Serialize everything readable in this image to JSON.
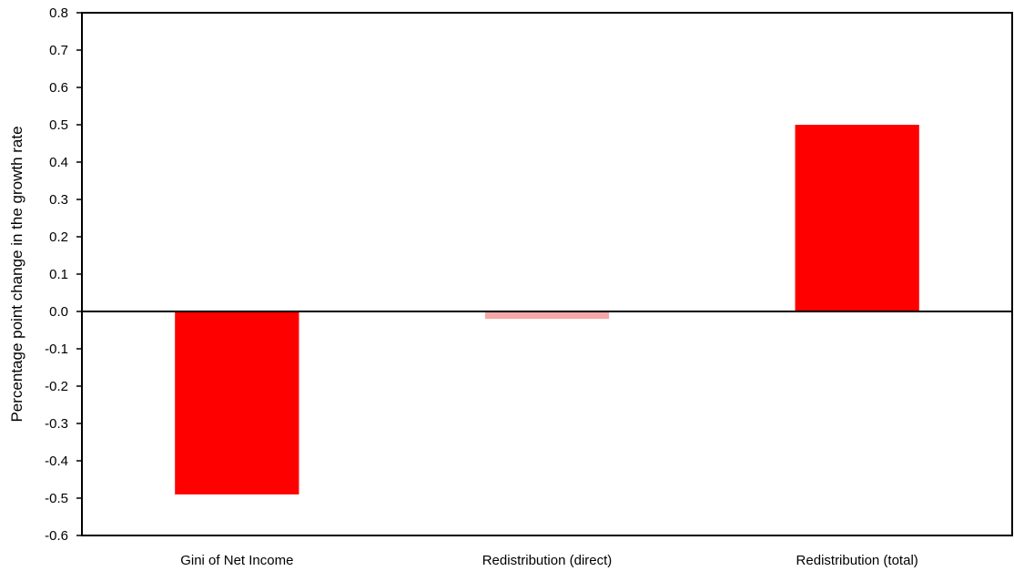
{
  "chart_data": {
    "type": "bar",
    "title": "",
    "xlabel": "",
    "ylabel": "Percentage point change in the growth rate",
    "categories": [
      "Gini of Net Income",
      "Redistribution (direct)",
      "Redistribution (total)"
    ],
    "series": [
      {
        "values": [
          -0.49,
          -0.02,
          0.5
        ]
      }
    ],
    "bar_colors": [
      "#ff0000",
      "#f4a7a7",
      "#ff0000"
    ],
    "ylim": [
      -0.6,
      0.8
    ],
    "yticks": [
      0.8,
      0.7,
      0.6,
      0.5,
      0.4,
      0.3,
      0.2,
      0.1,
      0.0,
      -0.1,
      -0.2,
      -0.3,
      -0.4,
      -0.5,
      -0.6
    ],
    "ytick_labels": [
      "0.8",
      "0.7",
      "0.6",
      "0.5",
      "0.4",
      "0.3",
      "0.2",
      "0.1",
      "0.0",
      "-0.1",
      "-0.2",
      "-0.3",
      "-0.4",
      "-0.5",
      "-0.6"
    ],
    "grid": false,
    "legend": "none"
  }
}
